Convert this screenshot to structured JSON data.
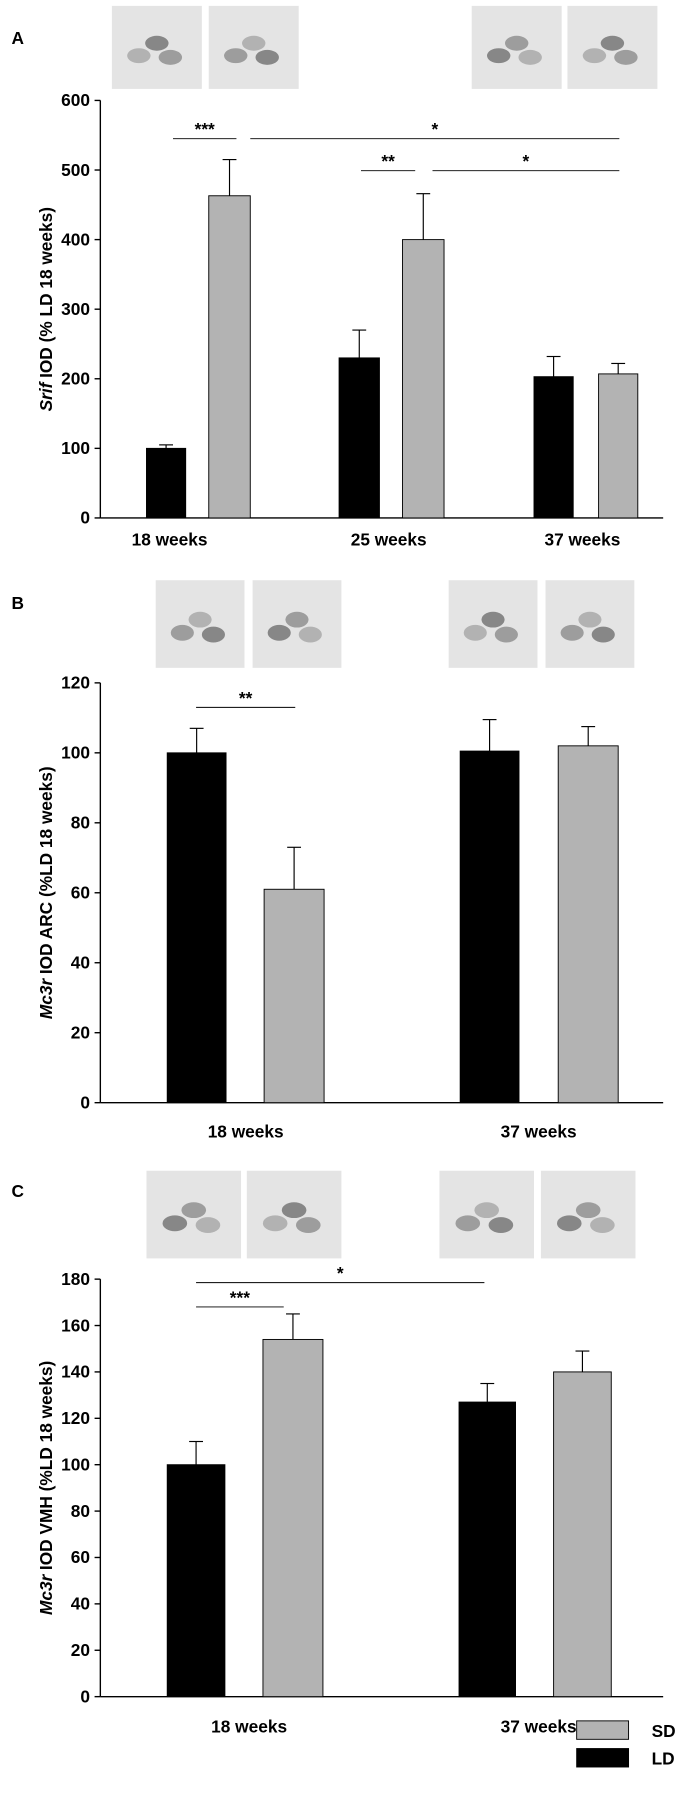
{
  "chart_data": [
    {
      "type": "bar",
      "panel": "A",
      "ylabel_gene": "Srif",
      "ylabel": "IOD (% LD 18 weeks)",
      "categories": [
        "18 weeks",
        "25 weeks",
        "37 weeks"
      ],
      "series": [
        {
          "name": "LD",
          "color": "#000000",
          "values": [
            100,
            230,
            203
          ],
          "errors": [
            5,
            40,
            29
          ]
        },
        {
          "name": "SD",
          "color": "#b3b3b3",
          "values": [
            463,
            400,
            207
          ],
          "errors": [
            52,
            66,
            15
          ]
        }
      ],
      "ylim": [
        0,
        600
      ],
      "yticks": [
        0,
        100,
        200,
        300,
        400,
        500,
        600
      ],
      "annotations": [
        {
          "text": "***",
          "y": 545
        },
        {
          "text": "*",
          "y": 545
        },
        {
          "text": "**",
          "y": 499
        },
        {
          "text": "*",
          "y": 499
        }
      ]
    },
    {
      "type": "bar",
      "panel": "B",
      "ylabel_gene": "Mc3r",
      "ylabel": "IOD ARC (%LD 18 weeks)",
      "categories": [
        "18 weeks",
        "37 weeks"
      ],
      "series": [
        {
          "name": "LD",
          "color": "#000000",
          "values": [
            100,
            100.5
          ],
          "errors": [
            7,
            9
          ]
        },
        {
          "name": "SD",
          "color": "#b3b3b3",
          "values": [
            61,
            102
          ],
          "errors": [
            12,
            5.5
          ]
        }
      ],
      "ylim": [
        0,
        120
      ],
      "yticks": [
        0,
        20,
        40,
        60,
        80,
        100,
        120
      ],
      "annotations": [
        {
          "text": "**",
          "y": 113
        }
      ]
    },
    {
      "type": "bar",
      "panel": "C",
      "ylabel_gene": "Mc3r",
      "ylabel": "IOD VMH (%LD 18 weeks)",
      "categories": [
        "18 weeks",
        "37 weeks"
      ],
      "series": [
        {
          "name": "LD",
          "color": "#000000",
          "values": [
            100,
            127
          ],
          "errors": [
            10,
            8
          ]
        },
        {
          "name": "SD",
          "color": "#b3b3b3",
          "values": [
            154,
            140
          ],
          "errors": [
            11,
            9
          ]
        }
      ],
      "ylim": [
        0,
        180
      ],
      "yticks": [
        0,
        20,
        40,
        60,
        80,
        100,
        120,
        140,
        160,
        180
      ],
      "annotations": [
        {
          "text": "***",
          "y": 168
        },
        {
          "text": "*",
          "y": 178.5
        }
      ]
    }
  ]
}
